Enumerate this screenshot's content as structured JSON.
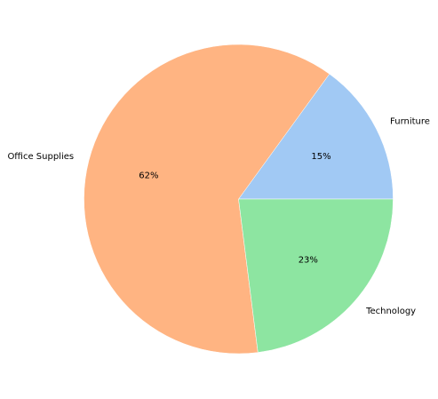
{
  "chart_data": {
    "type": "pie",
    "title": "",
    "start_angle_deg": 0,
    "direction": "counterclockwise",
    "slices": [
      {
        "label": "Furniture",
        "value": 15,
        "pct_label": "15%",
        "color": "#a1c9f4"
      },
      {
        "label": "Office Supplies",
        "value": 62,
        "pct_label": "62%",
        "color": "#ffb482"
      },
      {
        "label": "Technology",
        "value": 23,
        "pct_label": "23%",
        "color": "#8de5a1"
      }
    ],
    "legend": "none"
  }
}
